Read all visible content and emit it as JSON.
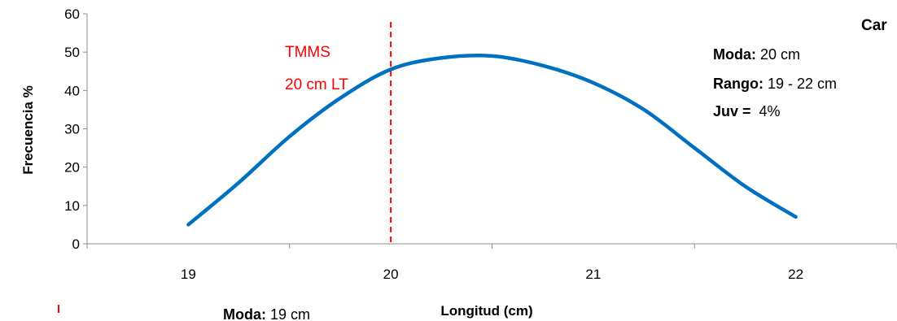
{
  "chart_data": {
    "type": "line",
    "title_partial": "Car",
    "xlabel": "Longitud (cm)",
    "ylabel": "Frecuencia %",
    "xlim": [
      18.5,
      22.5
    ],
    "ylim": [
      0,
      60
    ],
    "y_ticks": [
      "0",
      "10",
      "20",
      "30",
      "40",
      "50",
      "60"
    ],
    "x_ticks": [
      "19",
      "20",
      "21",
      "22"
    ],
    "series": [
      {
        "x": [
          19,
          19.25,
          19.5,
          19.75,
          20,
          20.25,
          20.5,
          20.75,
          21,
          21.25,
          21.5,
          21.75,
          22
        ],
        "values": [
          5,
          16,
          28,
          38,
          45.5,
          48.5,
          49,
          46.5,
          42,
          35,
          25,
          15,
          7
        ],
        "color": "#0070c0"
      }
    ],
    "reference_line": {
      "x": 20,
      "color": "#ff0000",
      "label_line1": "TMMS",
      "label_line2": "20 cm LT"
    },
    "annotations": {
      "moda_label": "Moda:",
      "moda_value": " 20 cm",
      "rango_label": "Rango:",
      "rango_value": " 19 - 22 cm",
      "juv_label": "Juv =",
      "juv_value": "  4%"
    },
    "bottom_annotation": {
      "moda_label": "Moda:",
      "moda_value": " 19 cm"
    },
    "grid": false
  }
}
